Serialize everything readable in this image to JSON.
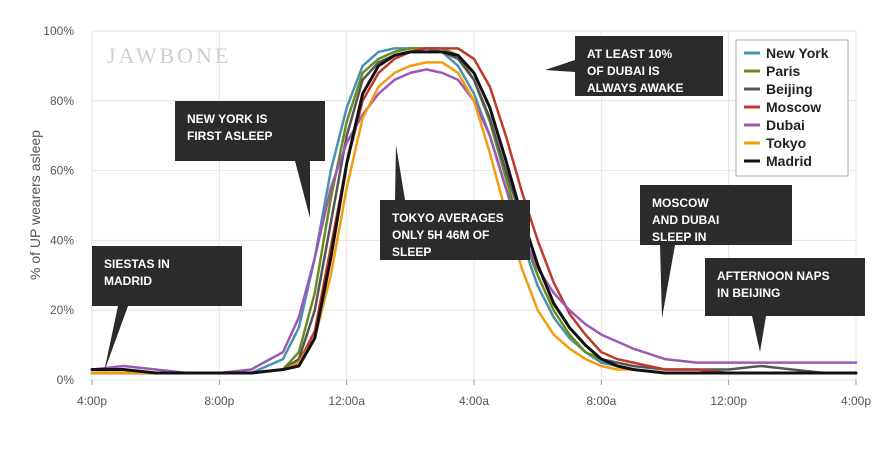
{
  "watermark": "JAWBONE",
  "chart_data": {
    "type": "line",
    "title": "",
    "xlabel": "",
    "ylabel": "% of UP wearers asleep",
    "x_tick_labels": [
      "4:00p",
      "8:00p",
      "12:00a",
      "4:00a",
      "8:00a",
      "12:00p",
      "4:00p"
    ],
    "y_tick_labels": [
      "0%",
      "20%",
      "40%",
      "60%",
      "80%",
      "100%"
    ],
    "x_unit": "hours since 4:00p",
    "xlim": [
      0,
      24
    ],
    "ylim": [
      0,
      100
    ],
    "grid": true,
    "legend_position": "top-right",
    "x": [
      0,
      1,
      2,
      3,
      4,
      5,
      6,
      6.5,
      7,
      7.5,
      8,
      8.5,
      9,
      9.5,
      10,
      10.5,
      11,
      11.5,
      12,
      12.5,
      13,
      13.5,
      14,
      14.5,
      15,
      15.5,
      16,
      16.5,
      17,
      18,
      19,
      20,
      21,
      22,
      23,
      24
    ],
    "series": [
      {
        "name": "New York",
        "color": "#4a90b0",
        "values": [
          2,
          2,
          2,
          2,
          2,
          2,
          6,
          15,
          35,
          60,
          78,
          90,
          94,
          95,
          95,
          95,
          94,
          90,
          82,
          70,
          55,
          40,
          27,
          18,
          12,
          8,
          5,
          4,
          3,
          2,
          2,
          2,
          2,
          2,
          2,
          2
        ]
      },
      {
        "name": "Paris",
        "color": "#6a8c1e",
        "values": [
          2,
          2,
          2,
          2,
          2,
          2,
          3,
          8,
          25,
          52,
          74,
          88,
          92,
          94,
          95,
          95,
          95,
          93,
          86,
          74,
          58,
          42,
          30,
          20,
          13,
          8,
          6,
          4,
          3,
          2,
          2,
          2,
          2,
          2,
          2,
          2
        ]
      },
      {
        "name": "Beijing",
        "color": "#555555",
        "values": [
          2,
          2,
          2,
          2,
          2,
          2,
          3,
          6,
          20,
          45,
          70,
          86,
          91,
          93,
          94,
          94,
          94,
          92,
          86,
          75,
          60,
          46,
          33,
          22,
          15,
          10,
          6,
          5,
          4,
          3,
          3,
          3,
          4,
          3,
          2,
          2
        ]
      },
      {
        "name": "Moscow",
        "color": "#c0392b",
        "values": [
          2,
          2,
          2,
          2,
          2,
          2,
          3,
          5,
          14,
          38,
          62,
          80,
          88,
          92,
          94,
          95,
          95,
          95,
          92,
          84,
          70,
          54,
          40,
          28,
          19,
          13,
          8,
          6,
          5,
          3,
          3,
          2,
          2,
          2,
          2,
          2
        ]
      },
      {
        "name": "Dubai",
        "color": "#9b59b6",
        "values": [
          3,
          4,
          3,
          2,
          2,
          3,
          8,
          18,
          35,
          55,
          68,
          76,
          82,
          86,
          88,
          89,
          88,
          86,
          80,
          70,
          55,
          42,
          32,
          25,
          20,
          16,
          13,
          11,
          9,
          6,
          5,
          5,
          5,
          5,
          5,
          5
        ]
      },
      {
        "name": "Tokyo",
        "color": "#f39c12",
        "values": [
          2,
          2,
          2,
          2,
          2,
          2,
          3,
          5,
          12,
          30,
          55,
          75,
          84,
          88,
          90,
          91,
          91,
          88,
          80,
          65,
          48,
          32,
          20,
          13,
          9,
          6,
          4,
          3,
          3,
          2,
          2,
          2,
          2,
          2,
          2,
          2
        ]
      },
      {
        "name": "Madrid",
        "color": "#111111",
        "values": [
          3,
          3,
          2,
          2,
          2,
          2,
          3,
          4,
          12,
          35,
          62,
          82,
          90,
          93,
          94,
          94,
          94,
          93,
          88,
          78,
          63,
          47,
          33,
          22,
          15,
          10,
          6,
          4,
          3,
          2,
          2,
          2,
          2,
          2,
          2,
          2
        ]
      }
    ],
    "annotations": [
      {
        "id": "siestas",
        "lines": [
          "SIESTAS IN",
          "MADRID"
        ]
      },
      {
        "id": "newyork",
        "lines": [
          "NEW YORK IS",
          "FIRST ASLEEP"
        ]
      },
      {
        "id": "tokyo",
        "lines": [
          "TOKYO AVERAGES",
          "ONLY 5H 46M OF",
          "SLEEP"
        ]
      },
      {
        "id": "dubai",
        "lines": [
          "AT LEAST 10%",
          "OF DUBAI IS",
          "ALWAYS AWAKE"
        ]
      },
      {
        "id": "moscow",
        "lines": [
          "MOSCOW",
          "AND DUBAI",
          "SLEEP IN"
        ]
      },
      {
        "id": "beijing",
        "lines": [
          "AFTERNOON NAPS",
          "IN BEIJING"
        ]
      }
    ]
  }
}
